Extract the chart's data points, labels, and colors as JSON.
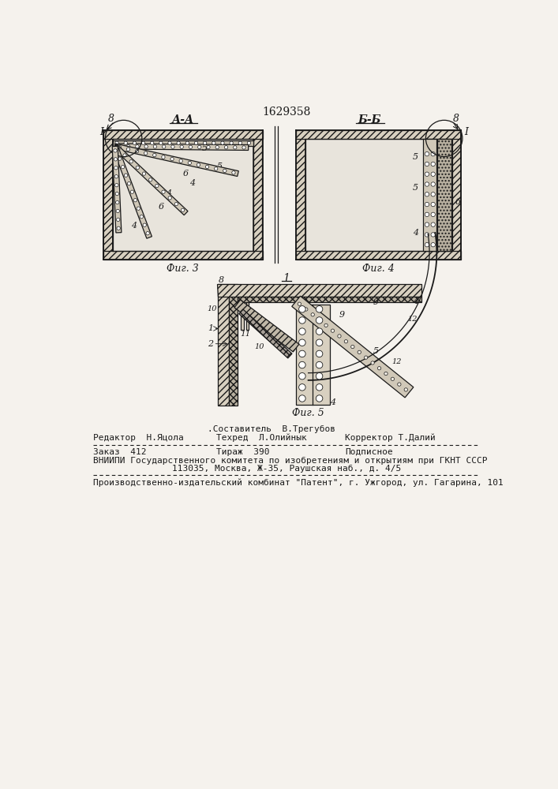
{
  "patent_number": "1629358",
  "fig3_label": "А-А",
  "fig4_label": "Б-Б",
  "fig5_label": "1",
  "fig3_caption": "Фиг. 3",
  "fig4_caption": "Фиг. 4",
  "fig5_caption": "Фиг. 5",
  "footer_line1": ".Составитель  В.Трегубов",
  "footer_line2_left": "Редактор  Н.Яцола",
  "footer_line2_mid": "Техред  Л.Олийнык",
  "footer_line2_right": "Корректор Т.Далий",
  "footer_line3_left": "Заказ  412",
  "footer_line3_mid": "Тираж  390",
  "footer_line3_right": "Подписное",
  "footer_line4": "ВНИИПИ Государственного комитета по изобретениям и открытиям при ГКНТ СССР",
  "footer_line5": "113035, Москва, Ж-35, Раушская наб., д. 4/5",
  "footer_line6": "Производственно-издательский комбинат \"Патент\", г. Ужгород, ул. Гагарина, 101",
  "bg_color": "#f5f2ed",
  "line_color": "#1a1a1a",
  "hatch_color": "#555555",
  "wall_fill": "#d8d0c0",
  "interior_fill": "#e8e4dc"
}
